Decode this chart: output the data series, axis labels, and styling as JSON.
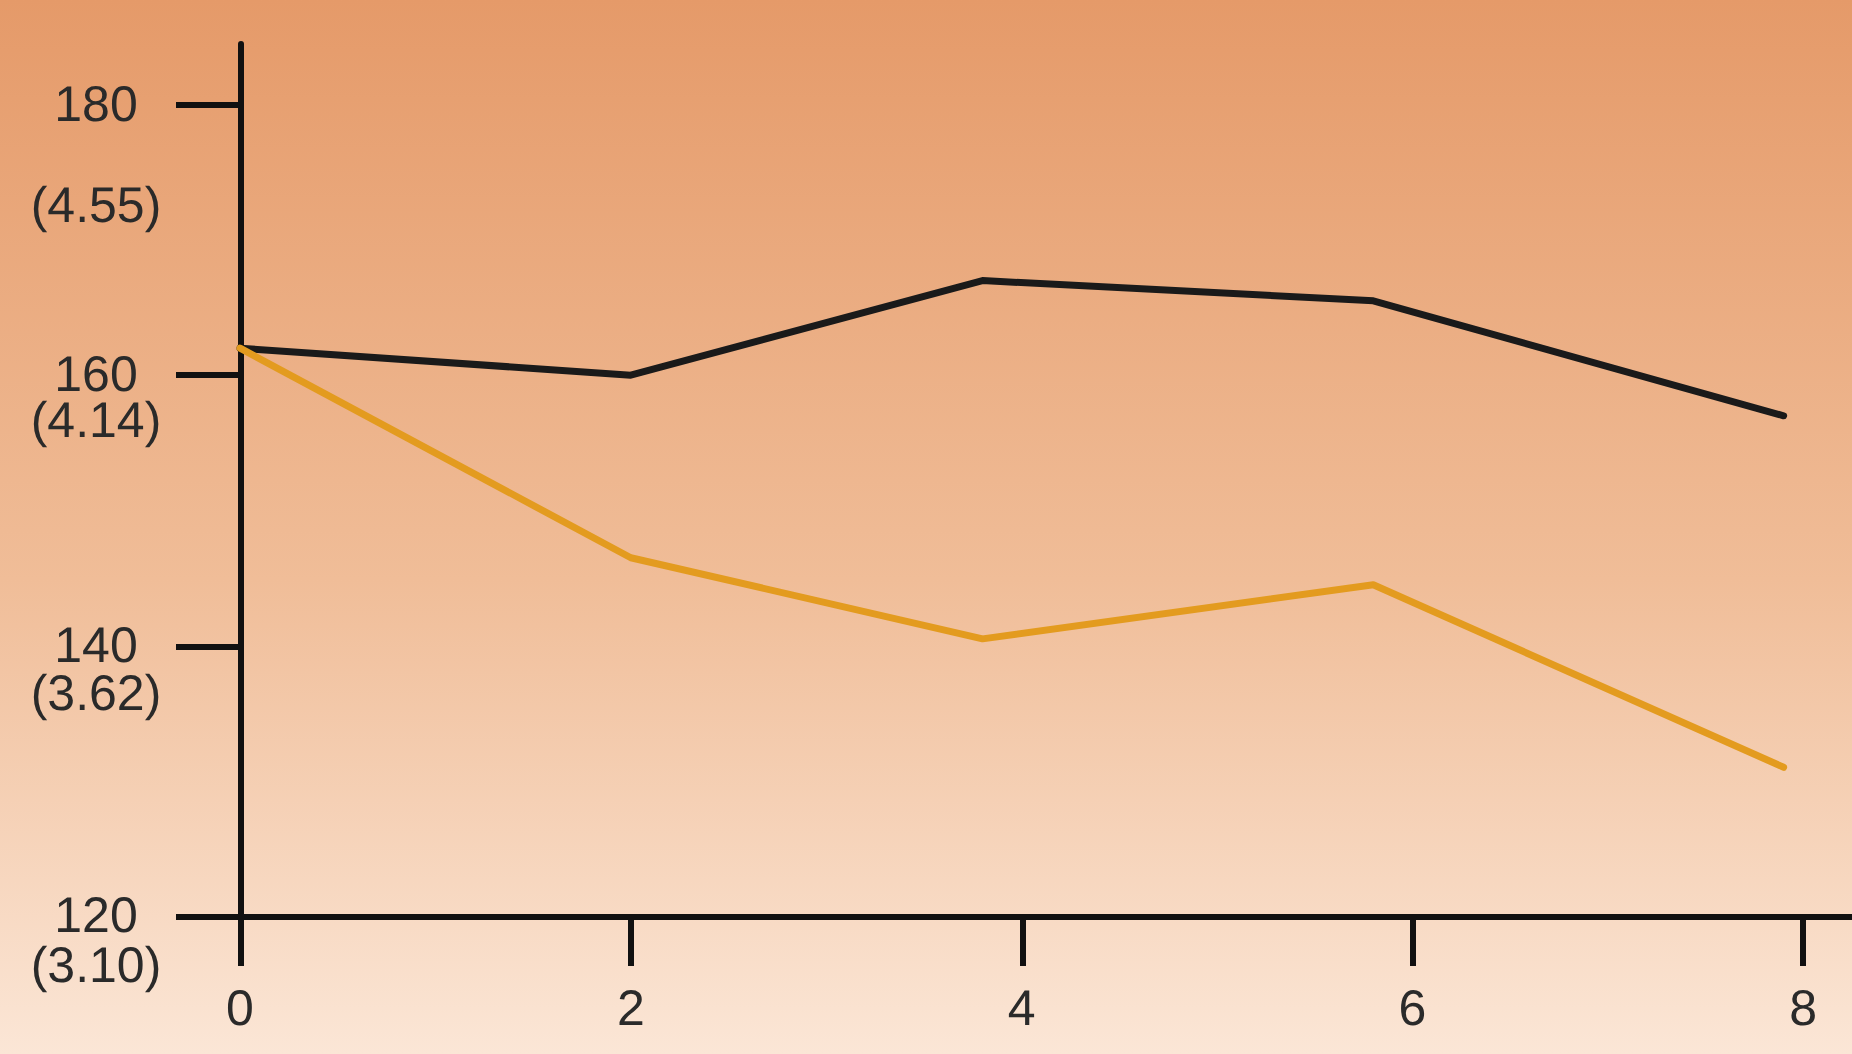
{
  "chart_data": {
    "type": "line",
    "x": [
      0,
      2,
      3.8,
      5.8,
      7.9
    ],
    "series": [
      {
        "color": "#1a1a1a",
        "values": [
          162,
          160,
          167,
          165.5,
          157
        ]
      },
      {
        "color": "#e39b1f",
        "values": [
          162,
          146.5,
          140.5,
          144.5,
          131
        ]
      }
    ],
    "xlim": [
      0,
      8.25
    ],
    "xticks": [
      0,
      2,
      4,
      6,
      8
    ],
    "ylim": [
      120,
      184.5
    ],
    "yticks": [
      120,
      140,
      160,
      180
    ],
    "y2lim": [
      3.1,
      4.86
    ],
    "y2ticks": [
      {
        "value": 3.1,
        "label": "(3.10)"
      },
      {
        "value": 3.62,
        "label": "(3.62)"
      },
      {
        "value": 4.14,
        "label": "(4.14)"
      },
      {
        "value": 4.55,
        "label": "(4.55)"
      }
    ],
    "marker": "none"
  }
}
